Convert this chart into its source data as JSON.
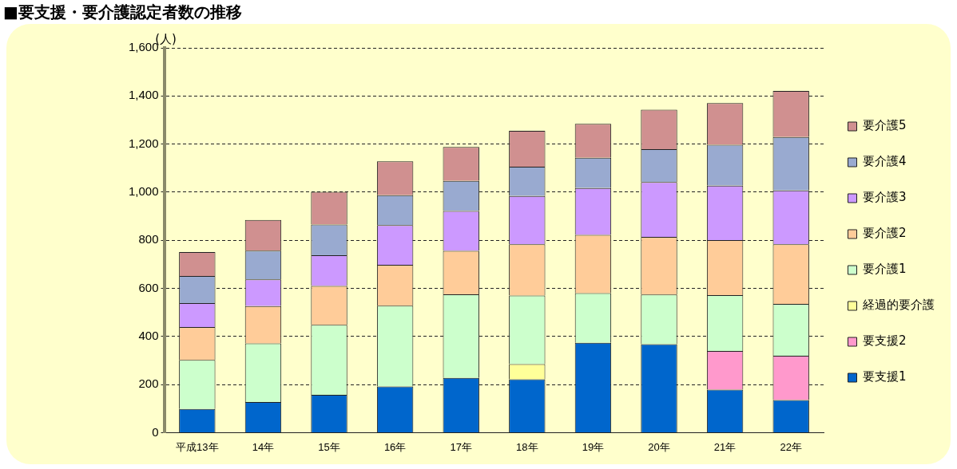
{
  "chart_data": {
    "type": "bar",
    "stacked": true,
    "title": "■要支援・要介護認定者数の推移",
    "ylabel": "(人)",
    "categories": [
      "平成13年",
      "14年",
      "15年",
      "16年",
      "17年",
      "18年",
      "19年",
      "20年",
      "21年",
      "22年"
    ],
    "series": [
      {
        "name": "要支援1",
        "color": "#0066cc",
        "values": [
          98,
          127,
          157,
          192,
          228,
          222,
          374,
          368,
          179,
          136
        ]
      },
      {
        "name": "要支援2",
        "color": "#ff99cc",
        "values": [
          null,
          null,
          null,
          null,
          null,
          null,
          null,
          null,
          161,
          184
        ]
      },
      {
        "name": "経過的要介護",
        "color": "#ffff99",
        "values": [
          null,
          null,
          null,
          null,
          null,
          63,
          null,
          null,
          null,
          null
        ]
      },
      {
        "name": "要介護1",
        "color": "#ccffcc",
        "values": [
          204,
          244,
          291,
          336,
          347,
          285,
          206,
          206,
          232,
          215
        ]
      },
      {
        "name": "要介護2",
        "color": "#ffcc99",
        "values": [
          137,
          155,
          162,
          170,
          181,
          213,
          242,
          240,
          229,
          248
        ]
      },
      {
        "name": "要介護3",
        "color": "#cc99ff",
        "values": [
          100,
          111,
          128,
          165,
          166,
          201,
          195,
          228,
          226,
          224
        ]
      },
      {
        "name": "要介護4",
        "color": "#99aad0",
        "values": [
          112,
          120,
          127,
          124,
          125,
          122,
          126,
          137,
          170,
          222
        ]
      },
      {
        "name": "要介護5",
        "color": "#d09090",
        "values": [
          100,
          127,
          136,
          141,
          141,
          149,
          141,
          164,
          173,
          192
        ]
      }
    ],
    "ylim": [
      0,
      1600
    ],
    "yticks": [
      0,
      {
        "value": 200,
        "label": "200"
      },
      {
        "value": 400,
        "label": "400"
      },
      {
        "value": 600,
        "label": "600"
      },
      {
        "value": 800,
        "label": "800"
      },
      {
        "value": 1000,
        "label": "1,000"
      },
      {
        "value": 1200,
        "label": "1,200"
      },
      {
        "value": 1400,
        "label": "1,400"
      },
      {
        "value": 1600,
        "label": "1,600"
      }
    ],
    "grid": "y",
    "legend": "right"
  }
}
